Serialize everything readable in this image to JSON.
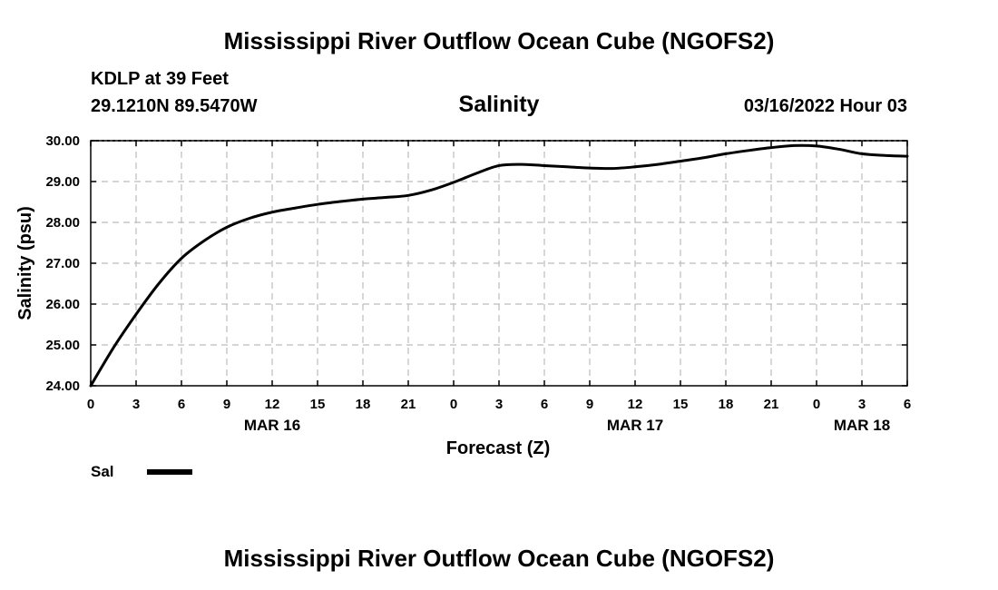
{
  "page": {
    "title_top": "Mississippi River Outflow Ocean Cube (NGOFS2)",
    "title_bottom": "Mississippi River Outflow Ocean Cube (NGOFS2)",
    "station": "KDLP at 39 Feet",
    "location": "29.1210N  89.5470W",
    "subtitle": "Salinity",
    "run_time": "03/16/2022 Hour 03",
    "legend_label": "Sal",
    "line_color": "#000000"
  },
  "chart_data": {
    "type": "line",
    "title": "Salinity",
    "xlabel": "Forecast (Z)",
    "ylabel": "Salinity (psu)",
    "xlim": [
      0,
      54
    ],
    "ylim": [
      24,
      30
    ],
    "x_ticks": [
      0,
      3,
      6,
      9,
      12,
      15,
      18,
      21,
      24,
      27,
      30,
      33,
      36,
      39,
      42,
      45,
      48,
      51,
      54
    ],
    "x_tick_labels": [
      "0",
      "3",
      "6",
      "9",
      "12",
      "15",
      "18",
      "21",
      "0",
      "3",
      "6",
      "9",
      "12",
      "15",
      "18",
      "21",
      "0",
      "3",
      "6"
    ],
    "y_ticks": [
      24,
      25,
      26,
      27,
      28,
      29,
      30
    ],
    "y_tick_labels": [
      "24.00",
      "25.00",
      "26.00",
      "27.00",
      "28.00",
      "29.00",
      "30.00"
    ],
    "date_labels": [
      {
        "x": 12,
        "label": "MAR 16"
      },
      {
        "x": 36,
        "label": "MAR 17"
      },
      {
        "x": 51,
        "label": "MAR 18"
      }
    ],
    "grid": true,
    "legend": "bottom-left",
    "series": [
      {
        "name": "Sal",
        "x": [
          0,
          1.5,
          3,
          4.5,
          6,
          7.5,
          9,
          10.5,
          12,
          13.5,
          15,
          16.5,
          18,
          19.5,
          21,
          22.5,
          24,
          25.5,
          27,
          28.5,
          30,
          31.5,
          33,
          34.5,
          36,
          37.5,
          39,
          40.5,
          42,
          43.5,
          45,
          46.5,
          48,
          49.5,
          51,
          52.5,
          54
        ],
        "values": [
          24.0,
          24.93,
          25.75,
          26.5,
          27.12,
          27.55,
          27.88,
          28.1,
          28.25,
          28.35,
          28.44,
          28.51,
          28.57,
          28.61,
          28.66,
          28.79,
          28.98,
          29.2,
          29.39,
          29.42,
          29.39,
          29.36,
          29.33,
          29.32,
          29.36,
          29.42,
          29.5,
          29.58,
          29.68,
          29.76,
          29.83,
          29.88,
          29.87,
          29.79,
          29.68,
          29.64,
          29.62
        ]
      }
    ]
  }
}
